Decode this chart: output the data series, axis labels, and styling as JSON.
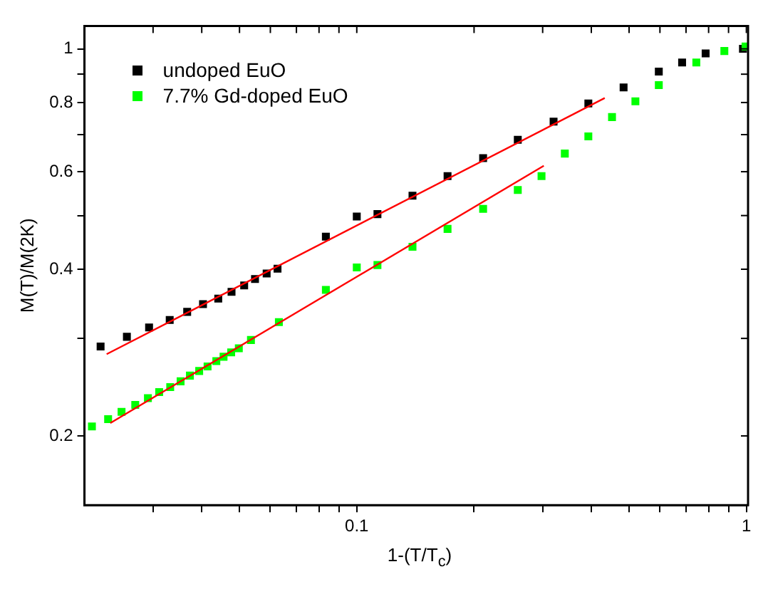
{
  "chart_data": {
    "type": "scatter",
    "xlabel": "1-(T/T$_{c}$)",
    "ylabel": "M(T)/M(2K)",
    "log": "xy",
    "grid": false,
    "legend": "top left",
    "marker": "square",
    "xlim": [
      0.02,
      1.01
    ],
    "ylim": [
      0.15,
      1.1
    ],
    "xticks": [
      {
        "value": 0.03,
        "label": null
      },
      {
        "value": 0.04,
        "label": null
      },
      {
        "value": 0.05,
        "label": null
      },
      {
        "value": 0.06,
        "label": null
      },
      {
        "value": 0.07,
        "label": null
      },
      {
        "value": 0.08,
        "label": null
      },
      {
        "value": 0.09,
        "label": null
      },
      0.1,
      {
        "value": 0.2,
        "label": null
      },
      {
        "value": 0.3,
        "label": null
      },
      {
        "value": 0.4,
        "label": null
      },
      {
        "value": 0.5,
        "label": null
      },
      {
        "value": 0.6,
        "label": null
      },
      {
        "value": 0.7,
        "label": null
      },
      {
        "value": 0.8,
        "label": null
      },
      {
        "value": 0.9,
        "label": null
      },
      1
    ],
    "yticks": [
      0.2,
      {
        "value": 0.3,
        "label": null
      },
      0.4,
      {
        "value": 0.5,
        "label": null
      },
      0.6,
      {
        "value": 0.7,
        "label": null
      },
      0.8,
      {
        "value": 0.9,
        "label": null
      },
      1
    ],
    "series": [
      {
        "name": "undoped EuO",
        "color": "#000000",
        "x": [
          0.022,
          0.0257,
          0.0293,
          0.0331,
          0.0367,
          0.0403,
          0.0441,
          0.0477,
          0.0514,
          0.0548,
          0.0587,
          0.0626,
          0.0833,
          0.1,
          0.113,
          0.139,
          0.171,
          0.211,
          0.259,
          0.32,
          0.393,
          0.484,
          0.596,
          0.684,
          0.786,
          0.98
        ],
        "values": [
          0.29,
          0.302,
          0.314,
          0.324,
          0.335,
          0.346,
          0.354,
          0.364,
          0.374,
          0.384,
          0.393,
          0.401,
          0.458,
          0.498,
          0.503,
          0.543,
          0.589,
          0.635,
          0.685,
          0.739,
          0.797,
          0.852,
          0.91,
          0.945,
          0.981,
          1.0
        ]
      },
      {
        "name": "7.7% Gd-doped EuO",
        "color": "#00ff00",
        "x": [
          0.0209,
          0.023,
          0.0249,
          0.027,
          0.0291,
          0.0311,
          0.0332,
          0.0353,
          0.0373,
          0.0394,
          0.0414,
          0.0436,
          0.0455,
          0.0476,
          0.0498,
          0.0535,
          0.0631,
          0.0833,
          0.1,
          0.113,
          0.139,
          0.171,
          0.211,
          0.259,
          0.298,
          0.342,
          0.393,
          0.452,
          0.519,
          0.596,
          0.744,
          0.878,
          0.995
        ],
        "values": [
          0.208,
          0.2145,
          0.221,
          0.2275,
          0.234,
          0.24,
          0.245,
          0.251,
          0.257,
          0.262,
          0.267,
          0.273,
          0.278,
          0.283,
          0.288,
          0.298,
          0.321,
          0.367,
          0.403,
          0.407,
          0.439,
          0.473,
          0.514,
          0.556,
          0.589,
          0.647,
          0.695,
          0.753,
          0.804,
          0.86,
          0.945,
          0.991,
          1.01
        ]
      },
      {
        "type": "line",
        "marker": "none",
        "line_style": "solid",
        "color": "#ff0000",
        "x": [
          0.0228,
          0.433
        ],
        "values": [
          0.281,
          0.815
        ]
      },
      {
        "type": "line",
        "marker": "none",
        "line_style": "solid",
        "color": "#ff0000",
        "x": [
          0.0233,
          0.302
        ],
        "values": [
          0.211,
          0.615
        ]
      }
    ]
  }
}
